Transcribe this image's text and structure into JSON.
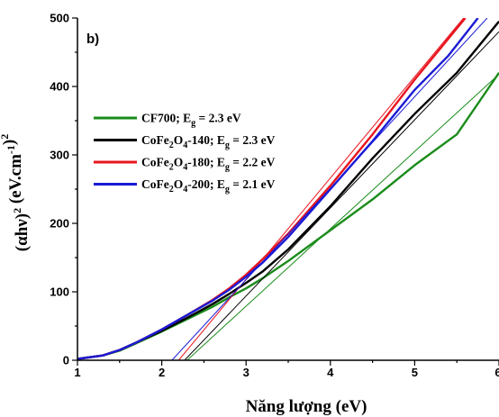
{
  "chart_data": {
    "type": "line",
    "panel_label": "b)",
    "xlabel": "Năng lượng (eV)",
    "ylabel": "(αhν)² (eV.cm⁻¹)²",
    "xlim": [
      1,
      6
    ],
    "ylim": [
      0,
      500
    ],
    "x_ticks": [
      "1",
      "2",
      "3",
      "4",
      "5",
      "6"
    ],
    "y_ticks": [
      "0",
      "100",
      "200",
      "300",
      "400",
      "500"
    ],
    "legend_position": "upper-left",
    "series": [
      {
        "name": "CF700; Eg = 2.3 eV",
        "color": "#1a8c1a",
        "x": [
          1.0,
          1.3,
          1.5,
          1.7,
          2.0,
          2.3,
          2.6,
          2.8,
          3.0,
          3.2,
          3.5,
          4.0,
          4.5,
          5.0,
          5.5,
          6.0
        ],
        "y": [
          2,
          7,
          14,
          25,
          42,
          60,
          78,
          92,
          105,
          120,
          145,
          190,
          235,
          285,
          330,
          420
        ],
        "tangent": {
          "x": [
            2.3,
            6.0
          ],
          "y": [
            0,
            418
          ]
        }
      },
      {
        "name": "CoFe2O4-140; Eg = 2.3 eV",
        "color": "#000000",
        "x": [
          1.0,
          1.3,
          1.5,
          1.7,
          2.0,
          2.3,
          2.6,
          2.8,
          3.0,
          3.2,
          3.5,
          4.0,
          4.5,
          5.0,
          5.5,
          6.0
        ],
        "y": [
          2,
          7,
          15,
          26,
          43,
          62,
          82,
          97,
          113,
          130,
          162,
          225,
          295,
          360,
          420,
          495
        ],
        "tangent": {
          "x": [
            2.27,
            6.0
          ],
          "y": [
            0,
            480
          ]
        }
      },
      {
        "name": "CoFe2O4-180; Eg = 2.2 eV",
        "color": "#e8141e",
        "x": [
          1.0,
          1.3,
          1.5,
          1.7,
          2.0,
          2.3,
          2.6,
          2.8,
          3.0,
          3.2,
          3.5,
          4.0,
          4.5,
          5.0,
          5.3,
          5.6
        ],
        "y": [
          2,
          7,
          15,
          26,
          45,
          66,
          88,
          105,
          125,
          148,
          185,
          255,
          330,
          410,
          455,
          500
        ],
        "tangent": {
          "x": [
            2.2,
            5.58
          ],
          "y": [
            0,
            500
          ]
        }
      },
      {
        "name": "CoFe2O4-200; Eg = 2.1 eV",
        "color": "#1a1ad6",
        "x": [
          1.0,
          1.3,
          1.5,
          1.7,
          2.0,
          2.3,
          2.6,
          2.8,
          3.0,
          3.2,
          3.5,
          4.0,
          4.5,
          5.0,
          5.4,
          5.75
        ],
        "y": [
          2,
          7,
          15,
          26,
          45,
          66,
          87,
          103,
          122,
          143,
          180,
          250,
          320,
          395,
          445,
          500
        ],
        "tangent": {
          "x": [
            2.12,
            5.86
          ],
          "y": [
            0,
            500
          ]
        }
      }
    ]
  }
}
